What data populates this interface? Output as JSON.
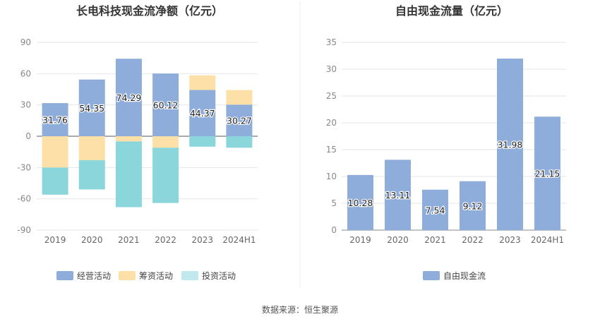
{
  "source_note": "数据来源：恒生聚源",
  "chart_data": [
    {
      "type": "bar",
      "stacked": true,
      "title": "长电科技现金流净额（亿元）",
      "categories": [
        "2019",
        "2020",
        "2021",
        "2022",
        "2023",
        "2024H1"
      ],
      "ylim": [
        -90,
        90
      ],
      "yticks": [
        90,
        60,
        30,
        0,
        -30,
        -60,
        -90
      ],
      "grid": true,
      "legend_position": "bottom",
      "series": [
        {
          "name": "经营活动",
          "color": "#8eaddb",
          "values": [
            31.76,
            54.35,
            74.29,
            60.12,
            44.37,
            30.27
          ],
          "labeled": true
        },
        {
          "name": "筹资活动",
          "color": "#fde0a8",
          "values": [
            -30,
            -23,
            -5,
            -11,
            14,
            14
          ],
          "labeled": false
        },
        {
          "name": "投资活动",
          "color": "#8bd6db",
          "values": [
            -26,
            -28,
            -63,
            -53,
            -10,
            -11
          ],
          "labeled": false
        }
      ],
      "legend_swatch_colors": [
        "#8eaddb",
        "#fde0a8",
        "#bfe9ec"
      ]
    },
    {
      "type": "bar",
      "title": "自由现金流量（亿元）",
      "categories": [
        "2019",
        "2020",
        "2021",
        "2022",
        "2023",
        "2024H1"
      ],
      "ylim": [
        0,
        35
      ],
      "yticks": [
        35,
        30,
        25,
        20,
        15,
        10,
        5,
        0
      ],
      "grid": true,
      "legend_position": "bottom",
      "series": [
        {
          "name": "自由现金流",
          "color": "#8eaddb",
          "values": [
            10.28,
            13.11,
            7.54,
            9.12,
            31.98,
            21.15
          ],
          "labeled": true
        }
      ]
    }
  ]
}
